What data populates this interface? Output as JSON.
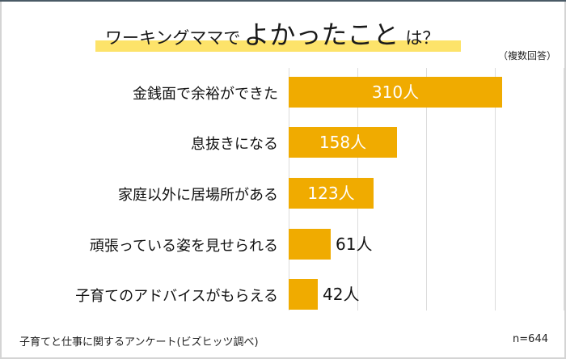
{
  "title": {
    "prefix": "ワーキングママで",
    "emphasis": "よかったこと",
    "suffix": "は？",
    "highlight_color": "#fde36a"
  },
  "note": "（複数回答）",
  "footer": {
    "source": "子育てと仕事に関するアンケート(ビズヒッツ調べ)",
    "sample": "n=644"
  },
  "chart_data": {
    "type": "bar",
    "orientation": "horizontal",
    "title": "ワーキングママでよかったことは？",
    "subtitle": "（複数回答）",
    "categories": [
      "金銭面で余裕ができた",
      "息抜きになる",
      "家庭以外に居場所がある",
      "頑張っている姿を見せられる",
      "子育てのアドバイスがもらえる"
    ],
    "values": [
      310,
      158,
      123,
      61,
      42
    ],
    "value_labels": [
      "310人",
      "158人",
      "123人",
      "61人",
      "42人"
    ],
    "unit": "人",
    "xlabel": "",
    "ylabel": "",
    "xlim": [
      0,
      400
    ],
    "grid": true,
    "grid_step": 100,
    "legend": "none",
    "bar_color": "#f0ab00",
    "sample_size": "n=644",
    "source": "子育てと仕事に関するアンケート(ビズヒッツ調べ)"
  }
}
